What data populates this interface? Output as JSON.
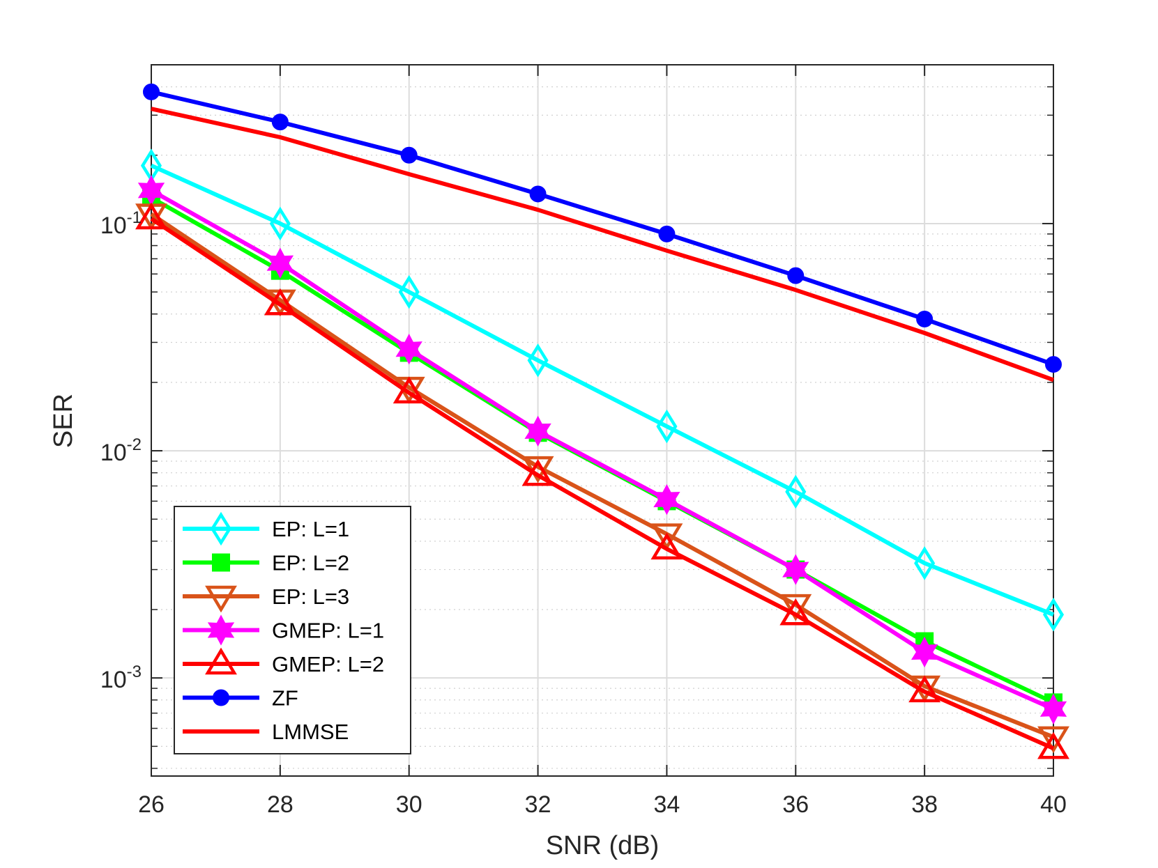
{
  "chart_data": {
    "type": "line",
    "xlabel": "SNR (dB)",
    "ylabel": "SER",
    "xlim": [
      26,
      40
    ],
    "ylim": [
      0.00037,
      0.5
    ],
    "yscale": "log",
    "grid": true,
    "legend_location": "bottom-left",
    "x_ticks": [
      "26",
      "28",
      "30",
      "32",
      "34",
      "36",
      "38",
      "40"
    ],
    "y_ticks": [
      {
        "base": "10",
        "exp": "-3",
        "value": 0.001
      },
      {
        "base": "10",
        "exp": "-2",
        "value": 0.01
      },
      {
        "base": "10",
        "exp": "-1",
        "value": 0.1
      }
    ],
    "x": [
      26,
      28,
      30,
      32,
      34,
      36,
      38,
      40
    ],
    "series": [
      {
        "name": "EP: L=1",
        "color": "#00ffff",
        "marker": "diamond",
        "values": [
          0.18,
          0.1,
          0.05,
          0.025,
          0.0128,
          0.0066,
          0.0032,
          0.0019
        ]
      },
      {
        "name": "EP: L=2",
        "color": "#00ff00",
        "marker": "square",
        "values": [
          0.13,
          0.062,
          0.027,
          0.012,
          0.006,
          0.003,
          0.00145,
          0.00078
        ]
      },
      {
        "name": "EP: L=3",
        "color": "#d95319",
        "marker": "triangle-down",
        "values": [
          0.11,
          0.046,
          0.019,
          0.0085,
          0.0043,
          0.0021,
          0.00092,
          0.00055
        ]
      },
      {
        "name": "GMEP: L=1",
        "color": "#ff00ff",
        "marker": "hexagram",
        "values": [
          0.14,
          0.067,
          0.028,
          0.0122,
          0.0061,
          0.003,
          0.0013,
          0.00073
        ]
      },
      {
        "name": "GMEP: L=2",
        "color": "#ff0000",
        "marker": "triangle-up",
        "values": [
          0.105,
          0.044,
          0.018,
          0.0078,
          0.0037,
          0.0019,
          0.00087,
          0.00049
        ]
      },
      {
        "name": "ZF",
        "color": "#0000ff",
        "marker": "circle",
        "values": [
          0.38,
          0.28,
          0.2,
          0.135,
          0.09,
          0.059,
          0.038,
          0.024
        ]
      },
      {
        "name": "LMMSE",
        "color": "#ff0000",
        "marker": "none",
        "values": [
          0.32,
          0.24,
          0.165,
          0.115,
          0.076,
          0.051,
          0.033,
          0.0205
        ]
      }
    ]
  }
}
